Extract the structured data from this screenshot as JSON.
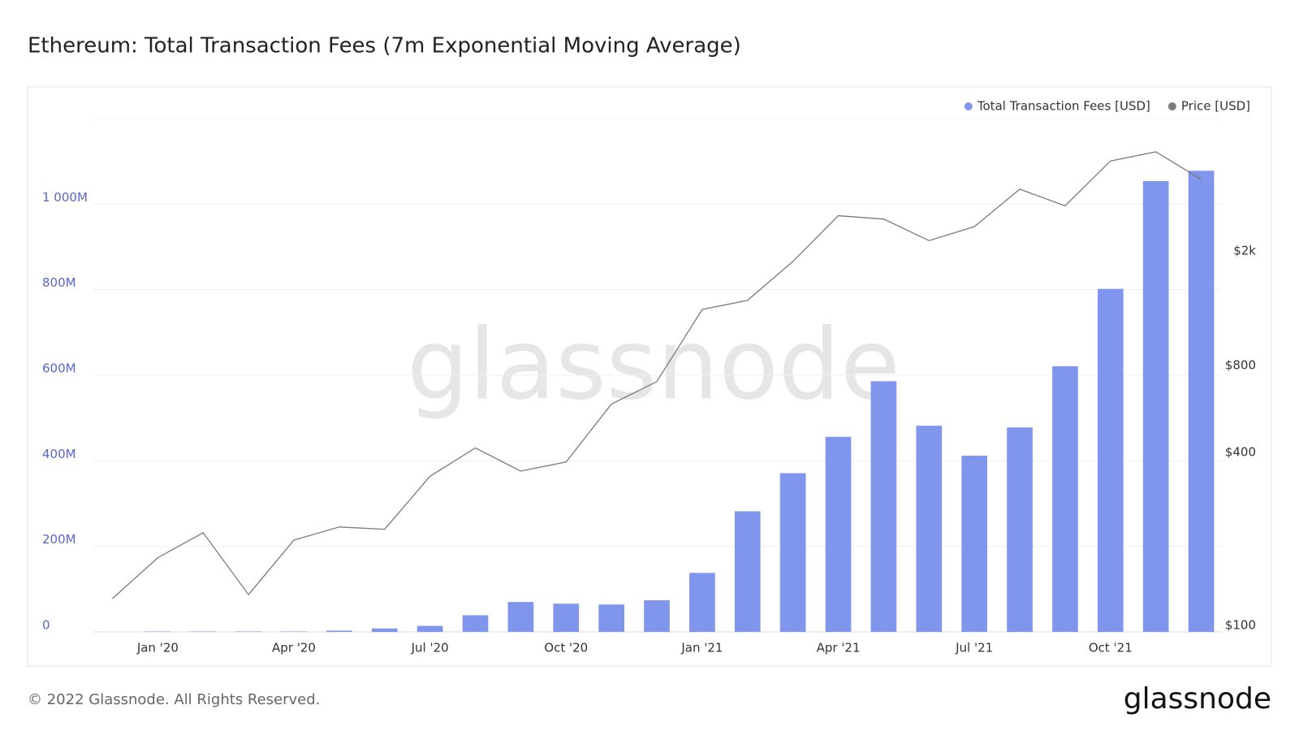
{
  "chart_data": {
    "type": "bar",
    "title": "Ethereum: Total Transaction Fees (7m Exponential Moving Average)",
    "watermark": "glassnode",
    "footer": "© 2022 Glassnode. All Rights Reserved.",
    "logo": "glassnode",
    "legend": "top-right",
    "categories": [
      null,
      "Jan '20",
      null,
      null,
      "Apr '20",
      null,
      null,
      "Jul '20",
      null,
      null,
      "Oct '20",
      null,
      null,
      "Jan '21",
      null,
      null,
      "Apr '21",
      null,
      null,
      "Jul '21",
      null,
      null,
      "Oct '21",
      null,
      null
    ],
    "series": [
      {
        "name": "Total Transaction Fees [USD]",
        "type": "bar",
        "color": "#8096ed",
        "values": [
          null,
          1,
          1,
          1,
          1,
          3,
          8,
          14,
          39,
          70,
          66,
          64,
          74,
          138,
          282,
          371,
          456,
          586,
          482,
          412,
          478,
          621,
          802,
          1054,
          1078
        ]
      },
      {
        "name": "Price [USD]",
        "type": "line",
        "axis": "y2",
        "color": "#7a7a7a",
        "values": [
          124,
          172,
          210,
          128,
          198,
          220,
          216,
          330,
          414,
          344,
          370,
          588,
          704,
          1253,
          1348,
          1841,
          2652,
          2583,
          2175,
          2432,
          3280,
          2872,
          4111,
          4424,
          3550
        ]
      }
    ],
    "ylim": [
      0,
      1200
    ],
    "yticks": [
      0,
      {
        "value": 200,
        "label": "200M"
      },
      {
        "value": 400,
        "label": "400M"
      },
      {
        "value": 600,
        "label": "600M"
      },
      {
        "value": 800,
        "label": "800M"
      },
      {
        "value": 1000,
        "label": "1 000M"
      }
    ],
    "y2lim": [
      95,
      5770
    ],
    "y2scale": "log",
    "y2ticks": [
      {
        "value": 100,
        "label": "$100"
      },
      {
        "value": 400,
        "label": "$400"
      },
      {
        "value": 800,
        "label": "$800"
      },
      {
        "value": 2000,
        "label": "$2k"
      }
    ],
    "grid": true
  }
}
